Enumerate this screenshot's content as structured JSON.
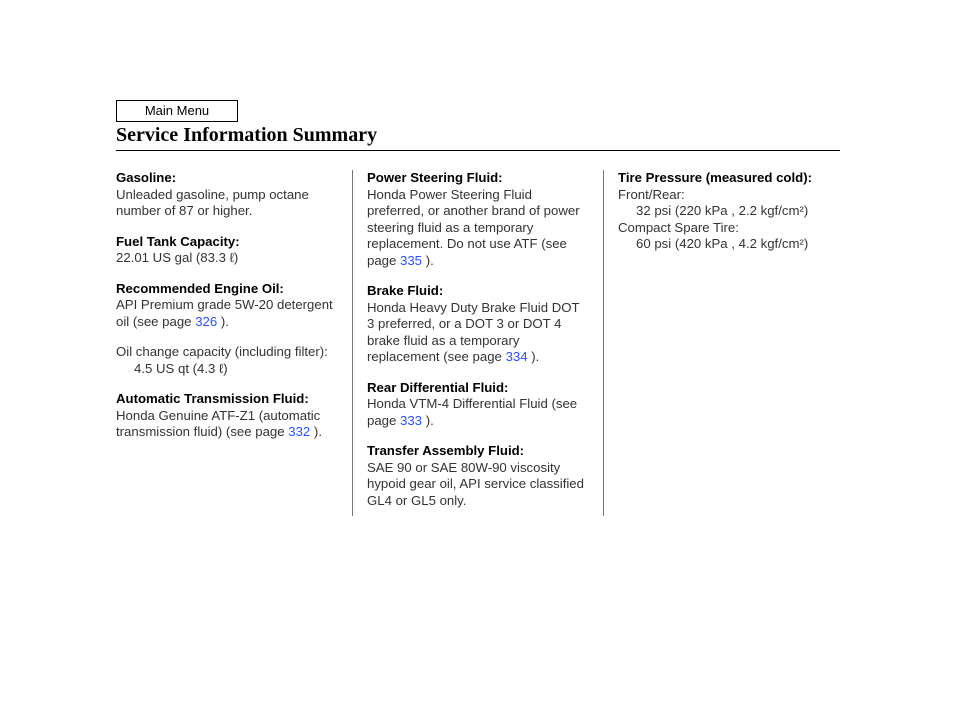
{
  "header": {
    "mainMenuLabel": "Main Menu",
    "title": "Service Information Summary"
  },
  "columns": {
    "col1": {
      "gasoline": {
        "label": "Gasoline:",
        "text": "Unleaded gasoline, pump octane number of 87 or higher."
      },
      "fuelTank": {
        "label": "Fuel Tank Capacity:",
        "text": "22.01 US gal (83.3 ℓ)"
      },
      "engineOil": {
        "label": "Recommended Engine Oil:",
        "textBefore": "API Premium grade 5W-20 detergent oil (see page ",
        "link": "326",
        "textAfter": " )."
      },
      "oilChange": {
        "line": "Oil change capacity (including filter):",
        "indent": "4.5 US qt (4.3 ℓ)"
      },
      "atf": {
        "label": "Automatic Transmission Fluid:",
        "textBefore": "Honda Genuine ATF-Z1 (automatic transmission fluid) (see page ",
        "link": "332",
        "textAfter": " )."
      }
    },
    "col2": {
      "psf": {
        "label": "Power Steering Fluid:",
        "textBefore": "Honda Power Steering Fluid preferred, or another brand of power steering fluid as a temporary replacement. Do not use ATF (see page ",
        "link": "335",
        "textAfter": " )."
      },
      "brake": {
        "label": "Brake Fluid:",
        "textBefore": "Honda Heavy Duty Brake Fluid DOT 3 preferred, or a DOT 3 or DOT 4 brake fluid as a temporary replacement (see page ",
        "link": "334",
        "textAfter": " )."
      },
      "rearDiff": {
        "label": "Rear Differential Fluid:",
        "textBefore": "Honda VTM-4 Differential Fluid (see page ",
        "link": "333",
        "textAfter": " )."
      },
      "transfer": {
        "label": "Transfer Assembly Fluid:",
        "text": "SAE 90 or SAE 80W-90 viscosity hypoid gear oil, API service classified GL4 or GL5 only."
      }
    },
    "col3": {
      "tire": {
        "label": "Tire Pressure (measured cold):",
        "frontRearLabel": "Front/Rear:",
        "frontRearValue": "32 psi (220 kPa , 2.2 kgf/cm²)",
        "spareLabel": "Compact Spare Tire:",
        "spareValue": "60 psi (420 kPa , 4.2 kgf/cm²)"
      }
    }
  }
}
